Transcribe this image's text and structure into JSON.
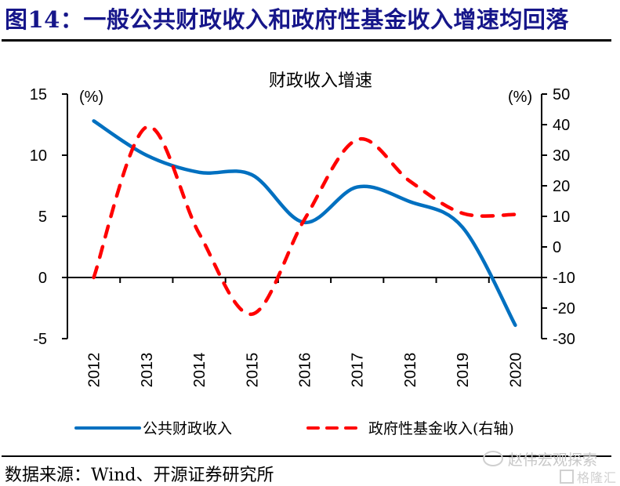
{
  "figure": {
    "title": "图14：一般公共财政收入和政府性基金收入增速均回落",
    "source": "数据来源：Wind、开源证券研究所",
    "watermark_primary": "赵伟宏观探索",
    "watermark_primary_icon": "wechat-icon",
    "watermark_secondary": "格隆汇"
  },
  "chart_data": {
    "type": "line",
    "title": "财政收入增速",
    "categories": [
      "2012",
      "2013",
      "2014",
      "2015",
      "2016",
      "2017",
      "2018",
      "2019",
      "2020"
    ],
    "xlabel": "",
    "ylabel": "(%)",
    "ylabel_right": "(%)",
    "ylim": [
      -5,
      15
    ],
    "yticks": [
      15,
      10,
      5,
      0,
      -5
    ],
    "ylim_right": [
      -30,
      50
    ],
    "yticks_right": [
      50,
      40,
      30,
      20,
      10,
      0,
      -10,
      -20,
      -30
    ],
    "grid": false,
    "legend_position": "bottom",
    "series": [
      {
        "name": "公共财政收入",
        "axis": "left",
        "style": "solid",
        "color": "#0070c0",
        "values": [
          12.8,
          10.0,
          8.6,
          8.4,
          4.5,
          7.4,
          6.2,
          4.1,
          -3.9
        ]
      },
      {
        "name": "政府性基金收入(右轴)",
        "axis": "right",
        "style": "dashed",
        "color": "#ff0000",
        "values": [
          -10.0,
          39.2,
          4.4,
          -22.0,
          9.0,
          35.1,
          21.5,
          11.0,
          10.6
        ]
      }
    ]
  }
}
